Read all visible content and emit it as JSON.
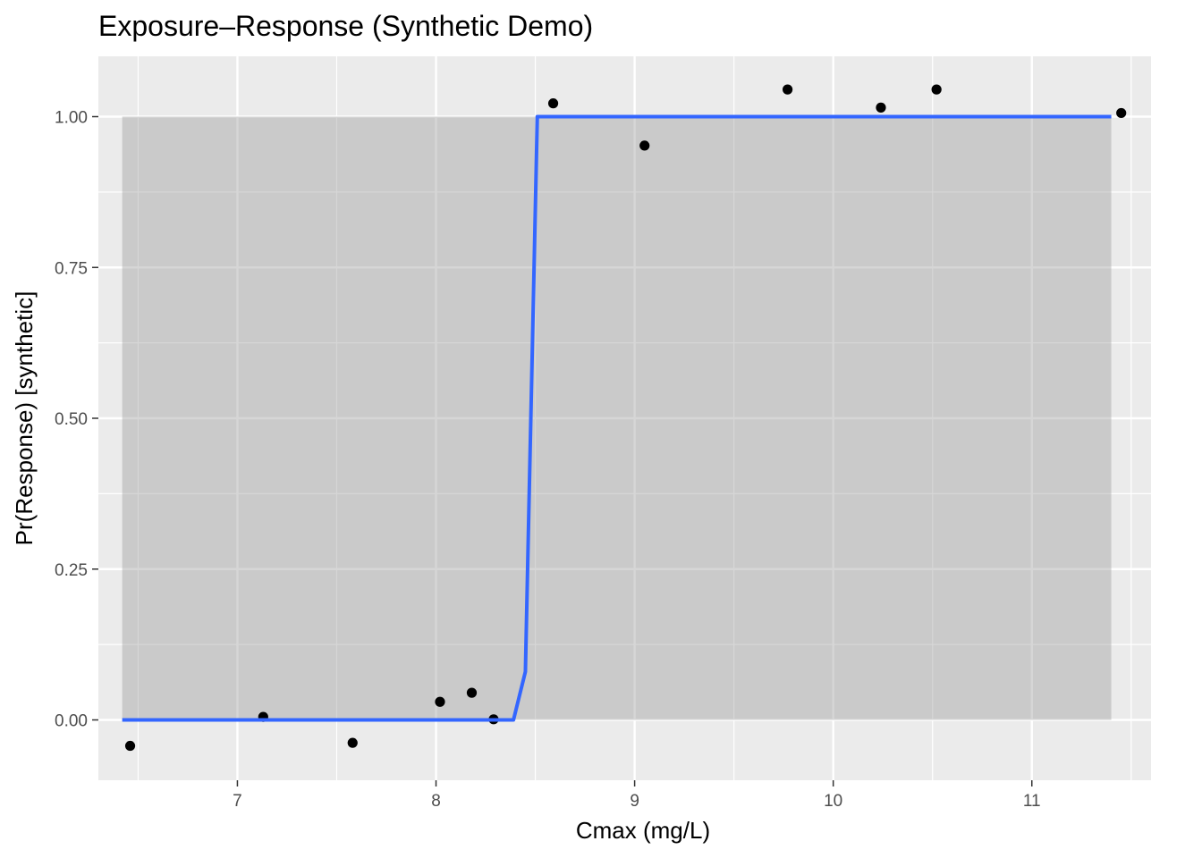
{
  "chart_data": {
    "type": "scatter",
    "title": "Exposure–Response (Synthetic Demo)",
    "xlabel": "Cmax (mg/L)",
    "ylabel": "Pr(Response) [synthetic]",
    "xlim": [
      6.3,
      11.6
    ],
    "ylim": [
      -0.1,
      1.1
    ],
    "x_ticks": [
      7,
      8,
      9,
      10,
      11
    ],
    "x_tick_labels": [
      "7",
      "8",
      "9",
      "10",
      "11"
    ],
    "y_ticks": [
      0,
      0.25,
      0.5,
      0.75,
      1
    ],
    "y_tick_labels": [
      "0.00",
      "0.25",
      "0.50",
      "0.75",
      "1.00"
    ],
    "grid": true,
    "points": [
      {
        "x": 6.46,
        "y": -0.043
      },
      {
        "x": 7.13,
        "y": 0.005
      },
      {
        "x": 7.58,
        "y": -0.038
      },
      {
        "x": 8.02,
        "y": 0.03
      },
      {
        "x": 8.18,
        "y": 0.045
      },
      {
        "x": 8.29,
        "y": 0.001
      },
      {
        "x": 8.59,
        "y": 1.022
      },
      {
        "x": 9.05,
        "y": 0.952
      },
      {
        "x": 9.77,
        "y": 1.045
      },
      {
        "x": 10.24,
        "y": 1.015
      },
      {
        "x": 10.52,
        "y": 1.045
      },
      {
        "x": 11.45,
        "y": 1.006
      }
    ],
    "fit_line": {
      "color": "#3366ff",
      "x": [
        6.42,
        8.39,
        8.45,
        8.51,
        11.4
      ],
      "y": [
        0.0,
        0.0,
        0.08,
        1.0,
        1.0
      ]
    },
    "confidence_band": {
      "color": "#999999",
      "x": [
        6.42,
        11.4
      ],
      "lower": [
        0.0,
        0.0
      ],
      "upper": [
        1.0,
        1.0
      ]
    },
    "colors": {
      "panel_background": "#ebebeb",
      "grid": "#ffffff",
      "points": "#000000"
    }
  }
}
